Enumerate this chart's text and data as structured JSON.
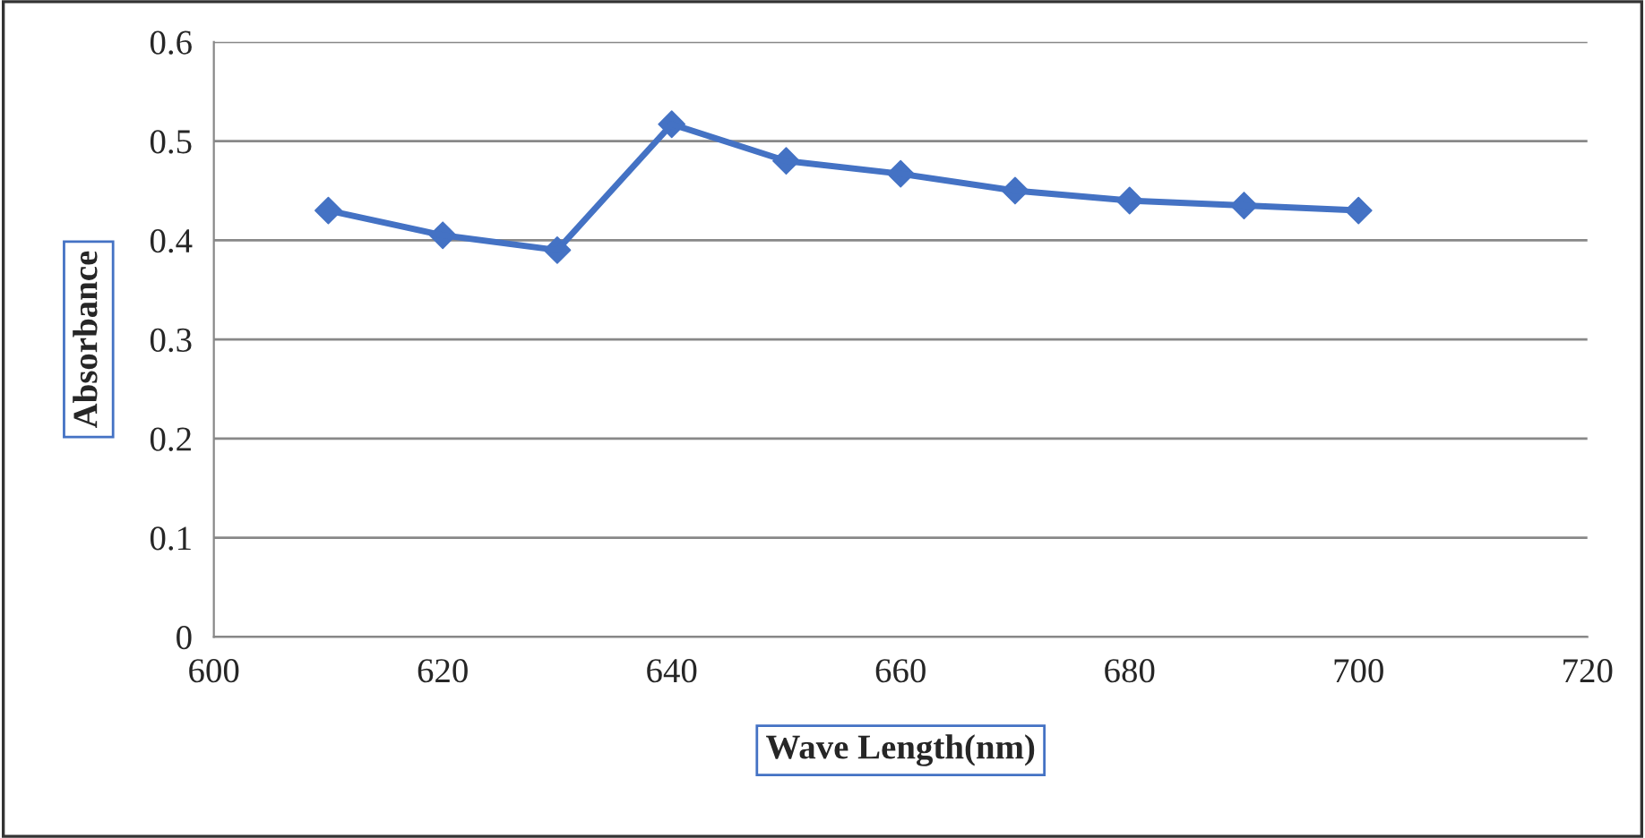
{
  "chart_data": {
    "type": "line",
    "xlabel": "Wave Length(nm)",
    "ylabel": "Absorbance",
    "x": [
      610,
      620,
      630,
      640,
      650,
      660,
      670,
      680,
      690,
      700
    ],
    "series": [
      {
        "color": "#4472c4",
        "values": [
          0.43,
          0.405,
          0.39,
          0.517,
          0.48,
          0.467,
          0.45,
          0.44,
          0.435,
          0.43
        ]
      }
    ],
    "xlim": [
      600,
      720
    ],
    "xticks": [
      600,
      620,
      640,
      660,
      680,
      700,
      720
    ],
    "ylim": [
      0,
      0.6
    ],
    "yticks": [
      0,
      0.1,
      0.2,
      0.3,
      0.4,
      0.5,
      0.6
    ],
    "grid": "y",
    "marker": "diamond",
    "line_style": "solid",
    "legend": false
  }
}
